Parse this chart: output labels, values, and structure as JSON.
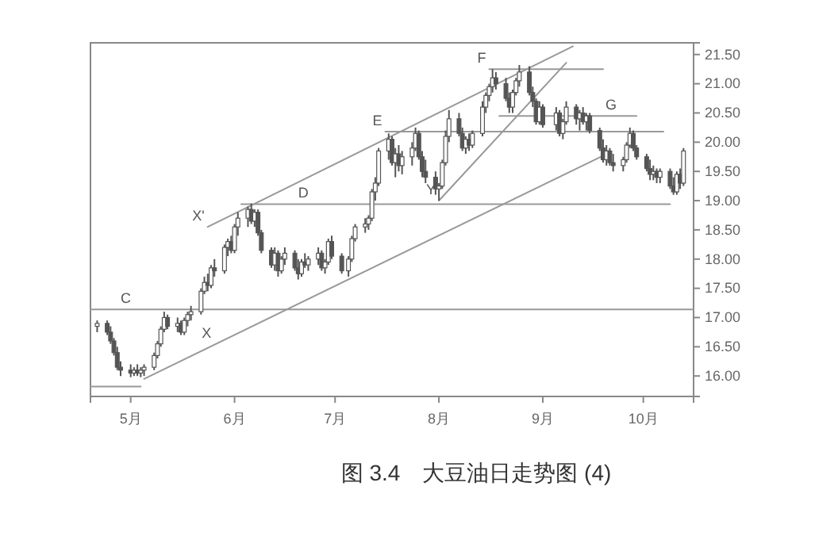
{
  "chart_data": {
    "type": "candlestick",
    "title": "图 3.4　大豆油日走势图 (4)",
    "xlim": [
      "--04-19",
      "--10-16"
    ],
    "xticks": [
      {
        "value": "--05-01",
        "label": "5月"
      },
      {
        "value": "--06-01",
        "label": "6月"
      },
      {
        "value": "--07-01",
        "label": "7月"
      },
      {
        "value": "--08-01",
        "label": "8月"
      },
      {
        "value": "--09-01",
        "label": "9月"
      },
      {
        "value": "--10-01",
        "label": "10月"
      }
    ],
    "ylim": [
      15.65,
      21.7
    ],
    "yticks": [
      {
        "value": 16,
        "label": "16.00"
      },
      {
        "value": 16.5,
        "label": "16.50"
      },
      {
        "value": 17,
        "label": "17.00"
      },
      {
        "value": 17.5,
        "label": "17.50"
      },
      {
        "value": 18,
        "label": "18.00"
      },
      {
        "value": 18.5,
        "label": "18.50"
      },
      {
        "value": 19,
        "label": "19.00"
      },
      {
        "value": 19.5,
        "label": "19.50"
      },
      {
        "value": 20,
        "label": "20.00"
      },
      {
        "value": 20.5,
        "label": "20.50"
      },
      {
        "value": 21,
        "label": "21.00"
      },
      {
        "value": 21.5,
        "label": "21.50"
      }
    ],
    "grid": false,
    "series": [
      {
        "color": "#555555",
        "x": [
          "--04-21",
          "--04-24",
          "--04-25",
          "--04-26",
          "--04-27",
          "--04-28",
          "--05-01",
          "--05-02",
          "--05-03",
          "--05-04",
          "--05-05",
          "--05-08",
          "--05-09",
          "--05-10",
          "--05-11",
          "--05-12",
          "--05-15",
          "--05-16",
          "--05-17",
          "--05-18",
          "--05-19",
          "--05-22",
          "--05-23",
          "--05-24",
          "--05-25",
          "--05-26",
          "--05-29",
          "--05-30",
          "--05-31",
          "--06-01",
          "--06-02",
          "--06-05",
          "--06-06",
          "--06-07",
          "--06-08",
          "--06-09",
          "--06-12",
          "--06-13",
          "--06-14",
          "--06-15",
          "--06-16",
          "--06-19",
          "--06-20",
          "--06-21",
          "--06-22",
          "--06-23",
          "--06-26",
          "--06-27",
          "--06-28",
          "--06-29",
          "--06-30",
          "--07-03",
          "--07-05",
          "--07-06",
          "--07-07",
          "--07-10",
          "--07-11",
          "--07-12",
          "--07-13",
          "--07-14",
          "--07-17",
          "--07-18",
          "--07-19",
          "--07-20",
          "--07-21",
          "--07-24",
          "--07-25",
          "--07-26",
          "--07-27",
          "--07-28",
          "--07-31",
          "--08-01",
          "--08-02",
          "--08-03",
          "--08-04",
          "--08-07",
          "--08-08",
          "--08-09",
          "--08-10",
          "--08-11",
          "--08-14",
          "--08-15",
          "--08-16",
          "--08-17",
          "--08-18",
          "--08-21",
          "--08-22",
          "--08-23",
          "--08-24",
          "--08-25",
          "--08-28",
          "--08-29",
          "--08-30",
          "--08-31",
          "--09-01",
          "--09-05",
          "--09-06",
          "--09-07",
          "--09-08",
          "--09-11",
          "--09-12",
          "--09-13",
          "--09-14",
          "--09-15",
          "--09-18",
          "--09-19",
          "--09-20",
          "--09-21",
          "--09-22",
          "--09-25",
          "--09-26",
          "--09-27",
          "--09-28",
          "--09-29",
          "--10-02",
          "--10-03",
          "--10-04",
          "--10-05",
          "--10-06",
          "--10-09",
          "--10-10",
          "--10-11",
          "--10-12",
          "--10-13"
        ],
        "ohlc": [
          [
            16.85,
            16.95,
            16.75,
            16.9
          ],
          [
            16.9,
            16.95,
            16.7,
            16.75
          ],
          [
            16.75,
            16.85,
            16.55,
            16.6
          ],
          [
            16.6,
            16.65,
            16.35,
            16.4
          ],
          [
            16.4,
            16.5,
            16.1,
            16.15
          ],
          [
            16.15,
            16.25,
            16.0,
            16.1
          ],
          [
            16.1,
            16.2,
            15.98,
            16.05
          ],
          [
            16.05,
            16.15,
            16.0,
            16.1
          ],
          [
            16.1,
            16.2,
            16.0,
            16.05
          ],
          [
            16.05,
            16.15,
            15.98,
            16.1
          ],
          [
            16.1,
            16.2,
            16.0,
            16.15
          ],
          [
            16.15,
            16.4,
            16.1,
            16.35
          ],
          [
            16.35,
            16.6,
            16.3,
            16.55
          ],
          [
            16.55,
            16.85,
            16.5,
            16.8
          ],
          [
            16.8,
            17.1,
            16.75,
            17.0
          ],
          [
            17.0,
            17.05,
            16.8,
            16.85
          ],
          [
            16.85,
            17.0,
            16.75,
            16.9
          ],
          [
            16.9,
            16.95,
            16.7,
            16.75
          ],
          [
            16.75,
            17.0,
            16.7,
            16.95
          ],
          [
            16.95,
            17.1,
            16.85,
            17.05
          ],
          [
            17.05,
            17.2,
            16.95,
            17.1
          ],
          [
            17.1,
            17.5,
            17.05,
            17.45
          ],
          [
            17.45,
            17.7,
            17.4,
            17.6
          ],
          [
            17.6,
            17.75,
            17.45,
            17.55
          ],
          [
            17.55,
            17.9,
            17.5,
            17.85
          ],
          [
            17.85,
            18.0,
            17.7,
            17.8
          ],
          [
            17.8,
            18.25,
            17.75,
            18.2
          ],
          [
            18.2,
            18.35,
            18.05,
            18.3
          ],
          [
            18.3,
            18.4,
            18.1,
            18.15
          ],
          [
            18.15,
            18.6,
            18.1,
            18.55
          ],
          [
            18.55,
            18.8,
            18.4,
            18.7
          ],
          [
            18.7,
            18.9,
            18.55,
            18.85
          ],
          [
            18.85,
            18.95,
            18.6,
            18.65
          ],
          [
            18.65,
            18.85,
            18.55,
            18.8
          ],
          [
            18.8,
            18.85,
            18.4,
            18.45
          ],
          [
            18.45,
            18.5,
            18.1,
            18.15
          ],
          [
            18.15,
            18.2,
            17.85,
            17.9
          ],
          [
            17.9,
            18.2,
            17.8,
            18.1
          ],
          [
            18.1,
            18.15,
            17.7,
            17.8
          ],
          [
            17.8,
            18.05,
            17.75,
            18.0
          ],
          [
            18.0,
            18.2,
            17.9,
            18.1
          ],
          [
            18.1,
            18.15,
            17.8,
            17.85
          ],
          [
            17.85,
            18.0,
            17.65,
            17.75
          ],
          [
            17.75,
            18.0,
            17.7,
            17.95
          ],
          [
            17.95,
            18.1,
            17.85,
            17.9
          ],
          [
            17.9,
            18.05,
            17.8,
            18.0
          ],
          [
            18.0,
            18.2,
            17.9,
            18.1
          ],
          [
            18.1,
            18.15,
            17.8,
            17.85
          ],
          [
            17.85,
            18.0,
            17.75,
            17.95
          ],
          [
            17.95,
            18.35,
            17.9,
            18.3
          ],
          [
            18.3,
            18.4,
            18.0,
            18.05
          ],
          [
            18.05,
            18.1,
            17.75,
            17.8
          ],
          [
            17.8,
            18.05,
            17.7,
            18.0
          ],
          [
            18.0,
            18.4,
            17.95,
            18.35
          ],
          [
            18.35,
            18.6,
            18.3,
            18.55
          ],
          [
            18.55,
            18.7,
            18.45,
            18.6
          ],
          [
            18.6,
            18.75,
            18.5,
            18.7
          ],
          [
            18.7,
            19.2,
            18.65,
            19.15
          ],
          [
            19.15,
            19.4,
            19.0,
            19.3
          ],
          [
            19.3,
            19.9,
            19.25,
            19.85
          ],
          [
            19.85,
            20.15,
            19.7,
            20.05
          ],
          [
            20.05,
            20.1,
            19.6,
            19.65
          ],
          [
            19.65,
            19.9,
            19.4,
            19.8
          ],
          [
            19.8,
            19.95,
            19.5,
            19.6
          ],
          [
            19.6,
            19.85,
            19.45,
            19.75
          ],
          [
            19.75,
            20.0,
            19.6,
            19.9
          ],
          [
            19.9,
            20.25,
            19.85,
            20.15
          ],
          [
            20.15,
            20.2,
            19.7,
            19.75
          ],
          [
            19.75,
            19.85,
            19.4,
            19.5
          ],
          [
            19.5,
            19.7,
            19.3,
            19.4
          ],
          [
            19.4,
            19.5,
            19.1,
            19.2
          ],
          [
            19.2,
            19.3,
            19.0,
            19.25
          ],
          [
            19.25,
            19.7,
            19.2,
            19.65
          ],
          [
            19.65,
            20.2,
            19.6,
            20.1
          ],
          [
            20.1,
            20.55,
            20.0,
            20.4
          ],
          [
            20.4,
            20.5,
            20.1,
            20.15
          ],
          [
            20.15,
            20.25,
            19.85,
            19.9
          ],
          [
            19.9,
            20.1,
            19.8,
            20.05
          ],
          [
            20.05,
            20.15,
            19.85,
            19.95
          ],
          [
            19.95,
            20.2,
            19.9,
            20.15
          ],
          [
            20.15,
            20.7,
            20.1,
            20.6
          ],
          [
            20.6,
            20.85,
            20.5,
            20.8
          ],
          [
            20.8,
            21.0,
            20.7,
            20.95
          ],
          [
            20.95,
            21.25,
            20.85,
            21.1
          ],
          [
            21.1,
            21.2,
            20.9,
            21.0
          ],
          [
            21.0,
            21.1,
            20.7,
            20.75
          ],
          [
            20.75,
            20.85,
            20.5,
            20.6
          ],
          [
            20.6,
            20.9,
            20.5,
            20.85
          ],
          [
            20.85,
            21.1,
            20.8,
            21.05
          ],
          [
            21.05,
            21.32,
            20.95,
            21.2
          ],
          [
            21.2,
            21.3,
            20.8,
            20.85
          ],
          [
            20.85,
            20.95,
            20.6,
            20.7
          ],
          [
            20.7,
            20.75,
            20.3,
            20.35
          ],
          [
            20.35,
            20.7,
            20.3,
            20.6
          ],
          [
            20.6,
            20.65,
            20.25,
            20.3
          ],
          [
            20.3,
            20.6,
            20.2,
            20.5
          ],
          [
            20.5,
            20.55,
            20.1,
            20.15
          ],
          [
            20.15,
            20.4,
            20.05,
            20.35
          ],
          [
            20.35,
            20.7,
            20.3,
            20.6
          ],
          [
            20.6,
            20.65,
            20.3,
            20.4
          ],
          [
            20.4,
            20.55,
            20.2,
            20.5
          ],
          [
            20.5,
            20.6,
            20.3,
            20.35
          ],
          [
            20.35,
            20.5,
            20.2,
            20.45
          ],
          [
            20.45,
            20.5,
            20.15,
            20.2
          ],
          [
            20.2,
            20.25,
            19.85,
            19.9
          ],
          [
            19.9,
            20.05,
            19.65,
            19.7
          ],
          [
            19.7,
            19.95,
            19.6,
            19.85
          ],
          [
            19.85,
            19.9,
            19.6,
            19.65
          ],
          [
            19.65,
            19.8,
            19.5,
            19.6
          ],
          [
            19.6,
            19.75,
            19.5,
            19.7
          ],
          [
            19.7,
            20.0,
            19.65,
            19.95
          ],
          [
            19.95,
            20.25,
            19.9,
            20.15
          ],
          [
            20.15,
            20.2,
            19.85,
            19.9
          ],
          [
            19.9,
            19.95,
            19.7,
            19.75
          ],
          [
            19.75,
            19.8,
            19.5,
            19.55
          ],
          [
            19.55,
            19.7,
            19.35,
            19.45
          ],
          [
            19.45,
            19.6,
            19.35,
            19.5
          ],
          [
            19.5,
            19.55,
            19.3,
            19.4
          ],
          [
            19.4,
            19.55,
            19.3,
            19.5
          ],
          [
            19.5,
            19.55,
            19.2,
            19.25
          ],
          [
            19.25,
            19.4,
            19.1,
            19.15
          ],
          [
            19.15,
            19.5,
            19.1,
            19.45
          ],
          [
            19.45,
            19.55,
            19.2,
            19.3
          ],
          [
            19.3,
            19.9,
            19.25,
            19.85
          ]
        ]
      },
      {
        "type": "line",
        "color": "#999999",
        "x": [
          "--04-19",
          "--10-16"
        ],
        "values": [
          17.14,
          17.14
        ]
      },
      {
        "type": "line",
        "color": "#999999",
        "x": [
          "--04-19",
          "--05-04"
        ],
        "values": [
          15.82,
          15.82
        ]
      },
      {
        "type": "line",
        "color": "#999999",
        "x": [
          "--06-03",
          "--10-09"
        ],
        "values": [
          18.94,
          18.94
        ]
      },
      {
        "type": "line",
        "color": "#999999",
        "x": [
          "--07-16",
          "--10-07"
        ],
        "values": [
          20.18,
          20.18
        ]
      },
      {
        "type": "line",
        "color": "#999999",
        "x": [
          "--08-16",
          "--09-19"
        ],
        "values": [
          21.25,
          21.25
        ]
      },
      {
        "type": "line",
        "color": "#999999",
        "x": [
          "--08-19",
          "--09-29"
        ],
        "values": [
          20.45,
          20.45
        ]
      },
      {
        "type": "line",
        "color": "#999999",
        "x": [
          "--05-24",
          "--09-10"
        ],
        "values": [
          18.55,
          21.64
        ]
      },
      {
        "type": "line",
        "color": "#999999",
        "x": [
          "--05-05",
          "--09-19"
        ],
        "values": [
          15.95,
          19.77
        ]
      },
      {
        "type": "line",
        "color": "#999999",
        "x": [
          "--08-01",
          "--09-08"
        ],
        "values": [
          19.0,
          21.36
        ]
      }
    ],
    "annotations": [
      {
        "text": "C",
        "x": "--05-02",
        "y": 17.14
      },
      {
        "text": "D",
        "x": "--06-24",
        "y": 18.94
      },
      {
        "text": "E",
        "x": "--07-16",
        "y": 20.18
      },
      {
        "text": "F",
        "x": "--08-16",
        "y": 21.25
      },
      {
        "text": "G",
        "x": "--09-24",
        "y": 20.45
      },
      {
        "text": "X'",
        "x": "--05-24",
        "y": 18.55
      },
      {
        "text": "X",
        "x": "--05-26",
        "y": 16.54
      },
      {
        "text": "Y",
        "x": "--08-01",
        "y": 19.0
      }
    ]
  }
}
